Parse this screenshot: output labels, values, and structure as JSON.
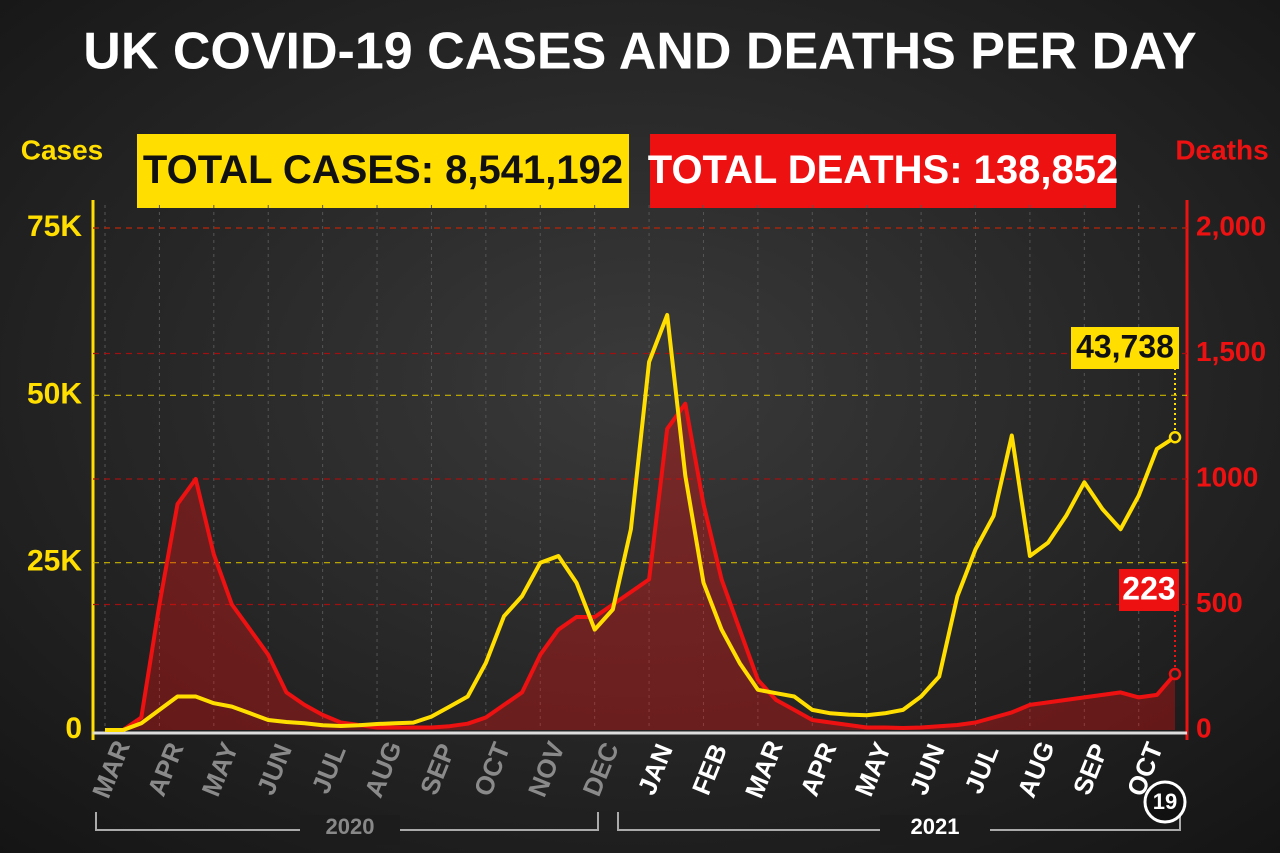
{
  "chart_data": {
    "type": "line",
    "title": "UK COVID-19 CASES AND DEATHS PER DAY",
    "ylabel": "Cases",
    "y2label": "Deaths",
    "total_cases_label": "TOTAL CASES:",
    "total_cases": "8,541,192",
    "total_deaths_label": "TOTAL DEATHS:",
    "total_deaths": "138,852",
    "years": [
      "2020",
      "2021"
    ],
    "end_day": "19",
    "categories": [
      "MAR",
      null,
      null,
      "APR",
      null,
      null,
      "MAY",
      null,
      null,
      "JUN",
      null,
      null,
      "JUL",
      null,
      null,
      "AUG",
      null,
      null,
      "SEP",
      null,
      null,
      "OCT",
      null,
      null,
      "NOV",
      null,
      null,
      "DEC",
      null,
      null,
      "JAN",
      null,
      null,
      "FEB",
      null,
      null,
      "MAR",
      null,
      null,
      "APR",
      null,
      null,
      "MAY",
      null,
      null,
      "JUN",
      null,
      null,
      "JUL",
      null,
      null,
      "AUG",
      null,
      null,
      "SEP",
      null,
      null,
      "OCT",
      null,
      null
    ],
    "series": [
      {
        "name": "Cases",
        "color": "#ffde00",
        "values": [
          0,
          0,
          1000,
          3000,
          5000,
          5000,
          4000,
          3500,
          2500,
          1500,
          1200,
          1000,
          700,
          600,
          700,
          900,
          1000,
          1100,
          2000,
          3500,
          5000,
          10000,
          17000,
          20000,
          25000,
          26000,
          22000,
          15000,
          18000,
          30000,
          55000,
          62000,
          38000,
          22000,
          15000,
          10000,
          6000,
          5500,
          5000,
          3000,
          2500,
          2300,
          2200,
          2500,
          3000,
          5000,
          8000,
          20000,
          27000,
          32000,
          44000,
          26000,
          28000,
          32000,
          37000,
          33000,
          30000,
          35000,
          42000,
          43738
        ],
        "value_labels": [
          null,
          null,
          null,
          null,
          null,
          null,
          null,
          null,
          null,
          null,
          null,
          null,
          null,
          null,
          null,
          null,
          null,
          null,
          null,
          null,
          null,
          null,
          null,
          null,
          null,
          null,
          null,
          null,
          null,
          null,
          null,
          null,
          null,
          null,
          null,
          null,
          null,
          null,
          null,
          null,
          null,
          null,
          null,
          null,
          null,
          null,
          null,
          null,
          null,
          null,
          null,
          null,
          null,
          null,
          null,
          null,
          null,
          null,
          null,
          "43,738"
        ]
      },
      {
        "name": "Deaths",
        "color": "#ee1111",
        "axis": "y2",
        "values": [
          0,
          0,
          50,
          500,
          900,
          1000,
          700,
          500,
          400,
          300,
          150,
          100,
          60,
          30,
          20,
          10,
          10,
          10,
          10,
          15,
          25,
          50,
          100,
          150,
          300,
          400,
          450,
          450,
          500,
          550,
          600,
          1200,
          1300,
          900,
          600,
          400,
          200,
          120,
          80,
          40,
          30,
          20,
          10,
          10,
          8,
          10,
          15,
          20,
          30,
          50,
          70,
          100,
          110,
          120,
          130,
          140,
          150,
          130,
          140,
          223
        ],
        "value_labels": [
          null,
          null,
          null,
          null,
          null,
          null,
          null,
          null,
          null,
          null,
          null,
          null,
          null,
          null,
          null,
          null,
          null,
          null,
          null,
          null,
          null,
          null,
          null,
          null,
          null,
          null,
          null,
          null,
          null,
          null,
          null,
          null,
          null,
          null,
          null,
          null,
          null,
          null,
          null,
          null,
          null,
          null,
          null,
          null,
          null,
          null,
          null,
          null,
          null,
          null,
          null,
          null,
          null,
          null,
          null,
          null,
          null,
          null,
          null,
          "223"
        ]
      }
    ],
    "ylim": [
      0,
      75000
    ],
    "yticks": [
      0,
      {
        "value": 25000,
        "label": "25K"
      },
      {
        "value": 50000,
        "label": "50K"
      },
      {
        "value": 75000,
        "label": "75K"
      }
    ],
    "y2lim": [
      0,
      2000
    ],
    "y2ticks": [
      0,
      500,
      1000,
      {
        "value": 1500,
        "label": "1,500"
      },
      {
        "value": 2000,
        "label": "2,000"
      }
    ],
    "grid": true
  }
}
